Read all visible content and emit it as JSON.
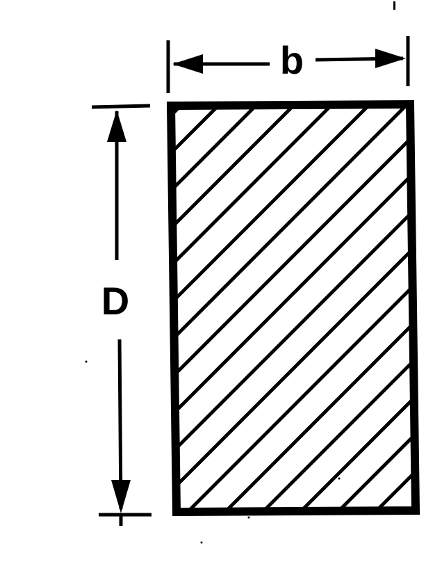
{
  "diagram": {
    "width_label": "b",
    "depth_label": "D"
  },
  "colors": {
    "ink": "#000000",
    "background": "#ffffff"
  }
}
